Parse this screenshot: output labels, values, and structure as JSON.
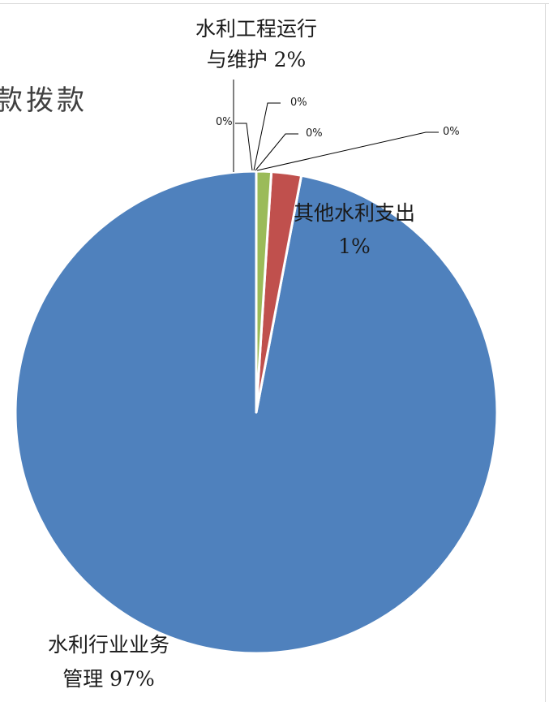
{
  "chart_data": {
    "type": "pie",
    "title": "款拨款",
    "slices": [
      {
        "name": "水利行业业务管理",
        "value": 97,
        "color": "#4f81bd"
      },
      {
        "name": "水利工程运行与维护",
        "value": 2,
        "color": "#c0504d"
      },
      {
        "name": "其他水利支出",
        "value": 1,
        "color": "#9bbb59"
      },
      {
        "name": "",
        "value": 0,
        "color": "#8064a2"
      },
      {
        "name": "",
        "value": 0,
        "color": "#4bacc6"
      },
      {
        "name": "",
        "value": 0,
        "color": "#f79646"
      },
      {
        "name": "",
        "value": 0,
        "color": "#2c4d75"
      }
    ],
    "labels": {
      "main_line1": "水利行业业务",
      "main_line2": "管理 97%",
      "ops_line1": "水利工程运行",
      "ops_line2": "与维护 2%",
      "other_line1": "其他水利支出",
      "other_line2": "1%",
      "zero_a": "0%",
      "zero_b": "0%",
      "zero_c": "0%",
      "zero_d": "0%"
    }
  }
}
